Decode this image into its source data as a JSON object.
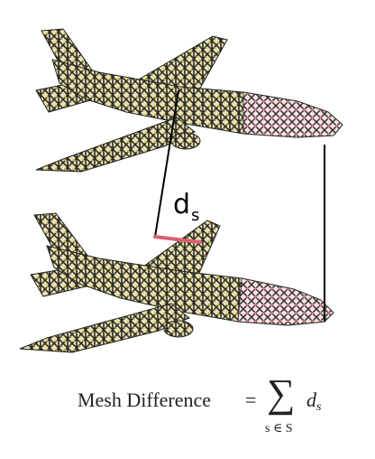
{
  "diagram": {
    "distance_label": {
      "base": "d",
      "sub": "s"
    },
    "formula": {
      "lhs": "Mesh Difference",
      "equals": "=",
      "operator": "∑",
      "subscript": "s ∈ S",
      "term_base": "d",
      "term_sub": "s"
    },
    "colors": {
      "distance_segment": "#d9606e",
      "connector_line": "#000000",
      "mesh_dark": "#2b2b22",
      "mesh_yellow": "#cfc67a",
      "mesh_pink": "#d9a0a4"
    }
  }
}
